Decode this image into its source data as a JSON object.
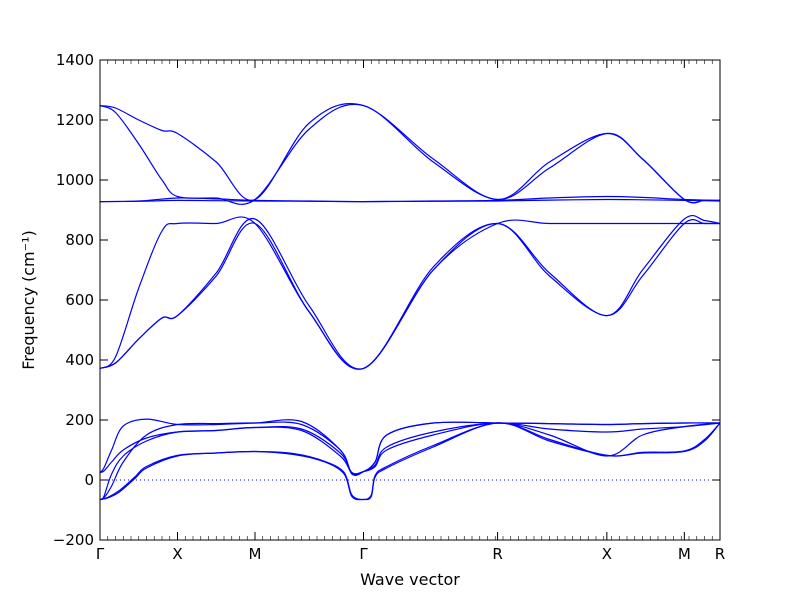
{
  "chart_data": {
    "type": "line",
    "xlabel": "Wave vector",
    "ylabel": "Frequency (cm⁻¹)",
    "ylim": [
      -200,
      1400
    ],
    "yticks": [
      -200,
      0,
      200,
      400,
      600,
      800,
      1000,
      1200,
      1400
    ],
    "xlim": [
      0,
      8
    ],
    "kpoints": [
      {
        "label": "Γ",
        "x": 0
      },
      {
        "label": "X",
        "x": 1
      },
      {
        "label": "M",
        "x": 2
      },
      {
        "label": "Γ",
        "x": 3.4
      },
      {
        "label": "R",
        "x": 5.13
      },
      {
        "label": "X",
        "x": 6.54
      },
      {
        "label": "M",
        "x": 7.54
      },
      {
        "label": "R",
        "x": 8
      }
    ],
    "zero_line": {
      "y": 0,
      "style": "dotted"
    },
    "grid": false,
    "line_color": "#0000ff",
    "series": [
      {
        "x": [
          0,
          0.2,
          0.5,
          0.8,
          1,
          1.5,
          2,
          2.7,
          3.4,
          4.3,
          5.13,
          5.8,
          6.54,
          7.0,
          7.54,
          7.8,
          8
        ],
        "values": [
          1248,
          1240,
          1200,
          1165,
          1155,
          1060,
          935,
          1190,
          1248,
          1070,
          935,
          1060,
          1155,
          1070,
          935,
          932,
          932
        ]
      },
      {
        "x": [
          0,
          0.2,
          0.5,
          0.8,
          1,
          1.5,
          2,
          2.7,
          3.4,
          4.3,
          5.13,
          5.8,
          6.54,
          7.0,
          7.54,
          7.8,
          8
        ],
        "values": [
          1248,
          1225,
          1120,
          1000,
          945,
          940,
          935,
          1170,
          1248,
          1060,
          935,
          1040,
          1155,
          1070,
          935,
          932,
          932
        ]
      },
      {
        "x": [
          0,
          0.5,
          1,
          1.5,
          2,
          2.7,
          3.4,
          4.3,
          5.13,
          5.8,
          6.54,
          7.0,
          7.54,
          8
        ],
        "values": [
          928,
          930,
          940,
          937,
          932,
          930,
          928,
          930,
          932,
          940,
          945,
          942,
          935,
          932
        ]
      },
      {
        "x": [
          0,
          0.5,
          1,
          1.5,
          2,
          2.7,
          3.4,
          4.3,
          5.13,
          5.8,
          6.54,
          7.0,
          7.54,
          8
        ],
        "values": [
          928,
          929,
          932,
          931,
          930,
          929,
          928,
          929,
          930,
          933,
          935,
          934,
          932,
          930
        ]
      },
      {
        "x": [
          0,
          0.2,
          0.5,
          0.8,
          1,
          1.5,
          2,
          2.7,
          3.4,
          4.3,
          5.13,
          5.8,
          6.54,
          7.0,
          7.54,
          7.8,
          8
        ],
        "values": [
          372,
          410,
          640,
          830,
          855,
          855,
          855,
          560,
          372,
          700,
          855,
          855,
          855,
          855,
          855,
          855,
          855
        ]
      },
      {
        "x": [
          0,
          0.2,
          0.5,
          0.8,
          1,
          1.5,
          2,
          2.7,
          3.4,
          4.3,
          5.13,
          5.8,
          6.54,
          7.0,
          7.54,
          7.8,
          8
        ],
        "values": [
          372,
          390,
          470,
          540,
          548,
          680,
          855,
          560,
          372,
          700,
          855,
          680,
          548,
          680,
          855,
          855,
          855
        ]
      },
      {
        "x": [
          0,
          0.2,
          0.5,
          0.8,
          1,
          1.5,
          2,
          2.7,
          3.4,
          4.3,
          5.13,
          5.8,
          6.54,
          7.0,
          7.54,
          7.8,
          8
        ],
        "values": [
          372,
          390,
          470,
          540,
          548,
          690,
          870,
          580,
          372,
          710,
          855,
          690,
          548,
          700,
          870,
          865,
          855
        ]
      },
      {
        "x": [
          0,
          0.05,
          0.15,
          0.3,
          0.6,
          1,
          1.5,
          2,
          2.6,
          3.1,
          3.25,
          3.4,
          3.55,
          3.7,
          4.3,
          5.13,
          5.8,
          6.54,
          7.0,
          7.54,
          8
        ],
        "values": [
          -65,
          -60,
          -20,
          60,
          150,
          185,
          188,
          190,
          185,
          100,
          20,
          28,
          60,
          150,
          190,
          190,
          188,
          185,
          188,
          190,
          190
        ]
      },
      {
        "x": [
          0,
          0.05,
          0.15,
          0.3,
          0.6,
          1,
          1.5,
          2,
          2.6,
          3.1,
          3.25,
          3.4,
          3.55,
          3.7,
          4.3,
          5.13,
          5.8,
          6.54,
          7.0,
          7.54,
          8
        ],
        "values": [
          25,
          40,
          100,
          180,
          203,
          185,
          185,
          190,
          195,
          100,
          22,
          28,
          60,
          150,
          190,
          190,
          188,
          185,
          188,
          190,
          190
        ]
      },
      {
        "x": [
          0,
          0.05,
          0.15,
          0.3,
          0.6,
          1,
          1.5,
          2,
          2.6,
          3.1,
          3.25,
          3.4,
          3.55,
          3.7,
          4.3,
          5.13,
          5.8,
          6.54,
          7.0,
          7.54,
          8
        ],
        "values": [
          -65,
          -55,
          20,
          80,
          130,
          160,
          165,
          175,
          170,
          90,
          25,
          28,
          50,
          110,
          160,
          190,
          170,
          160,
          170,
          178,
          190
        ]
      },
      {
        "x": [
          0,
          0.05,
          0.15,
          0.3,
          0.6,
          1,
          1.5,
          2,
          2.6,
          3.1,
          3.25,
          3.4,
          3.55,
          3.7,
          4.3,
          5.13,
          5.8,
          6.54,
          7.0,
          7.54,
          8
        ],
        "values": [
          25,
          30,
          60,
          100,
          140,
          160,
          165,
          175,
          165,
          80,
          24,
          28,
          45,
          100,
          150,
          190,
          150,
          80,
          150,
          178,
          190
        ]
      },
      {
        "x": [
          0,
          0.1,
          0.25,
          0.45,
          0.6,
          1,
          1.5,
          2,
          2.5,
          2.9,
          3.15,
          3.25,
          3.4,
          3.5,
          3.55,
          3.7,
          4.3,
          5.13,
          5.8,
          6.54,
          7.0,
          7.54,
          7.8,
          8
        ],
        "values": [
          -65,
          -60,
          -40,
          5,
          40,
          80,
          90,
          95,
          85,
          60,
          20,
          -55,
          -65,
          -55,
          10,
          40,
          110,
          190,
          130,
          82,
          90,
          95,
          130,
          190
        ]
      },
      {
        "x": [
          0,
          0.1,
          0.25,
          0.45,
          0.6,
          1,
          1.5,
          2,
          2.5,
          2.9,
          3.15,
          3.25,
          3.4,
          3.5,
          3.55,
          3.7,
          4.3,
          5.13,
          5.8,
          6.54,
          7.0,
          7.54,
          7.8,
          8
        ],
        "values": [
          -65,
          -58,
          -35,
          10,
          45,
          82,
          90,
          95,
          88,
          62,
          25,
          -50,
          -65,
          -50,
          15,
          45,
          115,
          190,
          135,
          82,
          92,
          97,
          135,
          190
        ]
      }
    ]
  }
}
